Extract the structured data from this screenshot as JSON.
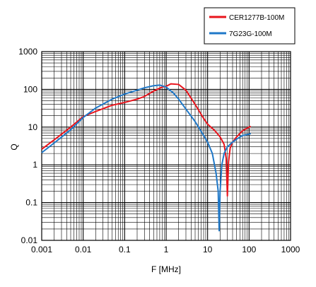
{
  "chart_data": {
    "type": "line",
    "title": "",
    "xlabel": "F [MHz]",
    "ylabel": "Q",
    "xscale": "log",
    "yscale": "log",
    "xlim": [
      0.001,
      1000
    ],
    "ylim": [
      0.01,
      1000
    ],
    "x_ticks": [
      "0.001",
      "0.01",
      "0.1",
      "1",
      "10",
      "100",
      "1000"
    ],
    "y_ticks": [
      "1000",
      "100",
      "10",
      "1",
      "0.1",
      "0.01"
    ],
    "grid": true,
    "legend_position": "top-right",
    "series": [
      {
        "name": "CER1277B-100M",
        "color": "#e8141c",
        "points": [
          [
            0.001,
            2.6
          ],
          [
            0.002,
            4.6
          ],
          [
            0.005,
            10
          ],
          [
            0.01,
            19
          ],
          [
            0.02,
            26
          ],
          [
            0.05,
            38
          ],
          [
            0.1,
            45
          ],
          [
            0.2,
            55
          ],
          [
            0.3,
            65
          ],
          [
            0.5,
            90
          ],
          [
            0.8,
            115
          ],
          [
            1,
            120
          ],
          [
            1.3,
            140
          ],
          [
            2,
            135
          ],
          [
            3,
            95
          ],
          [
            5,
            40
          ],
          [
            8,
            17
          ],
          [
            10,
            12
          ],
          [
            15,
            8
          ],
          [
            20,
            5.5
          ],
          [
            25,
            3.5
          ],
          [
            28,
            1.5
          ],
          [
            30,
            0.15
          ],
          [
            32,
            1.2
          ],
          [
            35,
            2.8
          ],
          [
            40,
            4
          ],
          [
            50,
            5.5
          ],
          [
            70,
            8
          ],
          [
            100,
            10
          ],
          [
            110,
            10.5
          ]
        ]
      },
      {
        "name": "7G23G-100M",
        "color": "#1f78c8",
        "points": [
          [
            0.001,
            2.1
          ],
          [
            0.002,
            3.8
          ],
          [
            0.005,
            8.5
          ],
          [
            0.01,
            18
          ],
          [
            0.02,
            32
          ],
          [
            0.05,
            55
          ],
          [
            0.1,
            75
          ],
          [
            0.2,
            95
          ],
          [
            0.3,
            110
          ],
          [
            0.5,
            125
          ],
          [
            0.7,
            130
          ],
          [
            1,
            115
          ],
          [
            1.5,
            80
          ],
          [
            2,
            55
          ],
          [
            3,
            30
          ],
          [
            5,
            14
          ],
          [
            8,
            6
          ],
          [
            10,
            4
          ],
          [
            13,
            2
          ],
          [
            16,
            0.6
          ],
          [
            18,
            0.2
          ],
          [
            19,
            0.018
          ],
          [
            20,
            0.2
          ],
          [
            22,
            1
          ],
          [
            25,
            2
          ],
          [
            30,
            3
          ],
          [
            40,
            4
          ],
          [
            50,
            4.8
          ],
          [
            70,
            6
          ],
          [
            100,
            6.5
          ],
          [
            110,
            6.8
          ]
        ]
      }
    ]
  }
}
